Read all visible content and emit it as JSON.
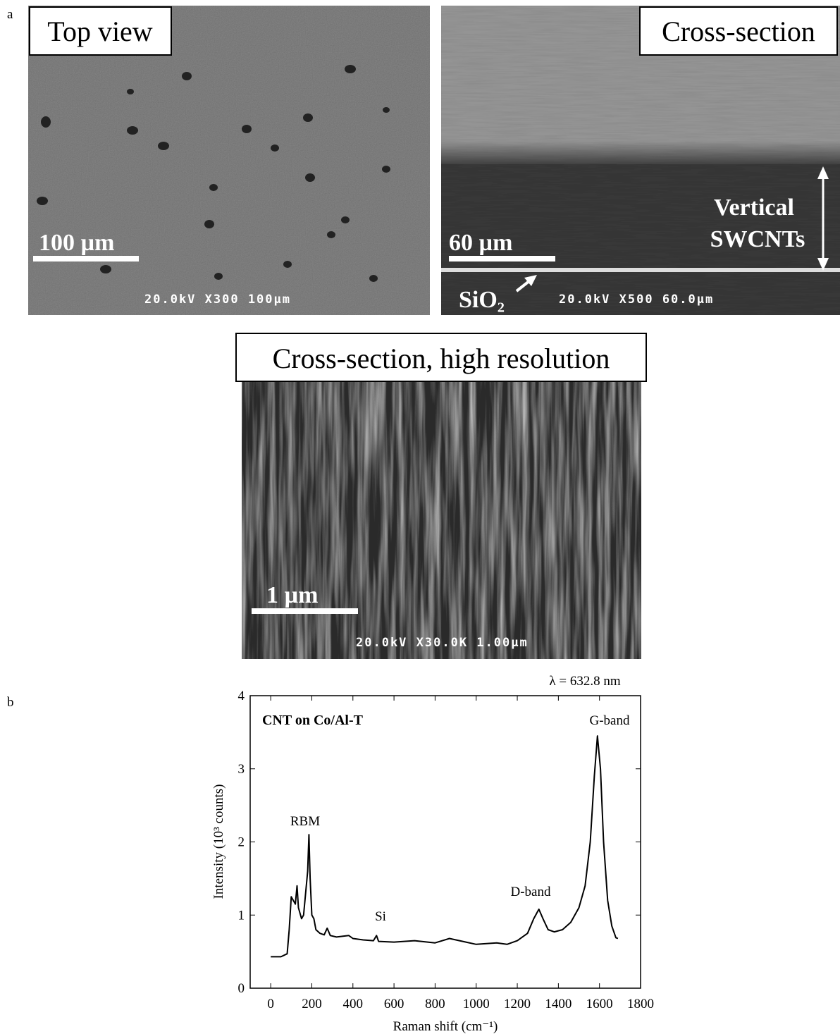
{
  "panel_a": {
    "label": "a",
    "top_view": {
      "title": "Top view",
      "scale_bar": "100 µm",
      "sem_info": "20.0kV X300 100µm"
    },
    "cross_section": {
      "title": "Cross-section",
      "annotation_lines": [
        "Vertical",
        "SWCNTs"
      ],
      "substrate": "SiO₂",
      "scale_bar": "60 µm",
      "sem_info": "20.0kV X500 60.0µm"
    },
    "high_resolution": {
      "title": "Cross-section, high resolution",
      "scale_bar": "1 µm",
      "sem_info": "20.0kV X30.0K 1.00µm"
    }
  },
  "panel_b": {
    "label": "b"
  },
  "chart_data": {
    "type": "line",
    "title": "λ = 632.8 nm",
    "subtitle": "CNT on Co/Al-T",
    "x_label": "Raman shift (cm⁻¹)",
    "y_label": "Intensity (10³ counts)",
    "annotations": [
      "RBM",
      "Si",
      "D-band",
      "G-band"
    ],
    "color": "#000000",
    "x": [
      0,
      50,
      80,
      90,
      100,
      110,
      120,
      128,
      135,
      150,
      160,
      170,
      180,
      186,
      192,
      200,
      210,
      220,
      240,
      260,
      275,
      290,
      320,
      380,
      400,
      450,
      500,
      515,
      525,
      600,
      700,
      800,
      870,
      950,
      1000,
      1100,
      1150,
      1200,
      1250,
      1280,
      1305,
      1325,
      1350,
      1380,
      1420,
      1460,
      1500,
      1530,
      1555,
      1575,
      1590,
      1605,
      1620,
      1640,
      1660,
      1680,
      1690
    ],
    "values": [
      0.43,
      0.43,
      0.47,
      0.8,
      1.25,
      1.2,
      1.15,
      1.4,
      1.1,
      0.95,
      1.0,
      1.3,
      1.6,
      2.1,
      1.5,
      1.0,
      0.95,
      0.8,
      0.75,
      0.73,
      0.82,
      0.72,
      0.7,
      0.72,
      0.68,
      0.66,
      0.65,
      0.72,
      0.64,
      0.63,
      0.65,
      0.62,
      0.68,
      0.63,
      0.6,
      0.62,
      0.6,
      0.65,
      0.75,
      0.95,
      1.08,
      0.95,
      0.8,
      0.77,
      0.8,
      0.9,
      1.1,
      1.4,
      2.0,
      2.9,
      3.45,
      3.0,
      2.0,
      1.2,
      0.85,
      0.69,
      0.68
    ],
    "xlim": [
      -100,
      1800
    ],
    "xticks": [
      0,
      200,
      400,
      600,
      800,
      1000,
      1200,
      1400,
      1600,
      1800
    ],
    "ylim": [
      0,
      4
    ],
    "yticks": [
      0,
      1,
      2,
      3,
      4
    ]
  }
}
